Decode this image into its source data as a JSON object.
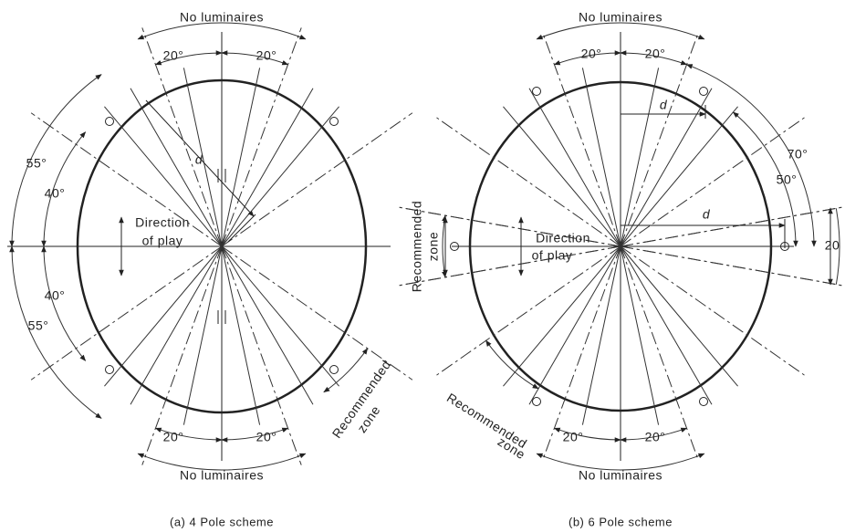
{
  "left": {
    "caption": "(a) 4 Pole scheme",
    "top_label": "No luminaires",
    "bottom_label": "No luminaires",
    "angles": [
      "20°",
      "20°",
      "55°",
      "40°",
      "40°",
      "55°",
      "20°",
      "20°"
    ],
    "d": "d",
    "direction": [
      "Direction",
      "of play"
    ],
    "recommended": [
      "Recommended",
      "zone"
    ]
  },
  "right": {
    "caption": "(b) 6 Pole scheme",
    "top_label": "No luminaires",
    "bottom_label": "No luminaires",
    "angles": [
      "20°",
      "20°",
      "70°",
      "50°",
      "20°",
      "20°"
    ],
    "d": [
      "d",
      "d"
    ],
    "zone_width": "20",
    "direction": [
      "Direction",
      "of play"
    ],
    "recommended_side": [
      "Recommended",
      "zone"
    ],
    "recommended_bottom": [
      "Recommended",
      "zone"
    ]
  }
}
